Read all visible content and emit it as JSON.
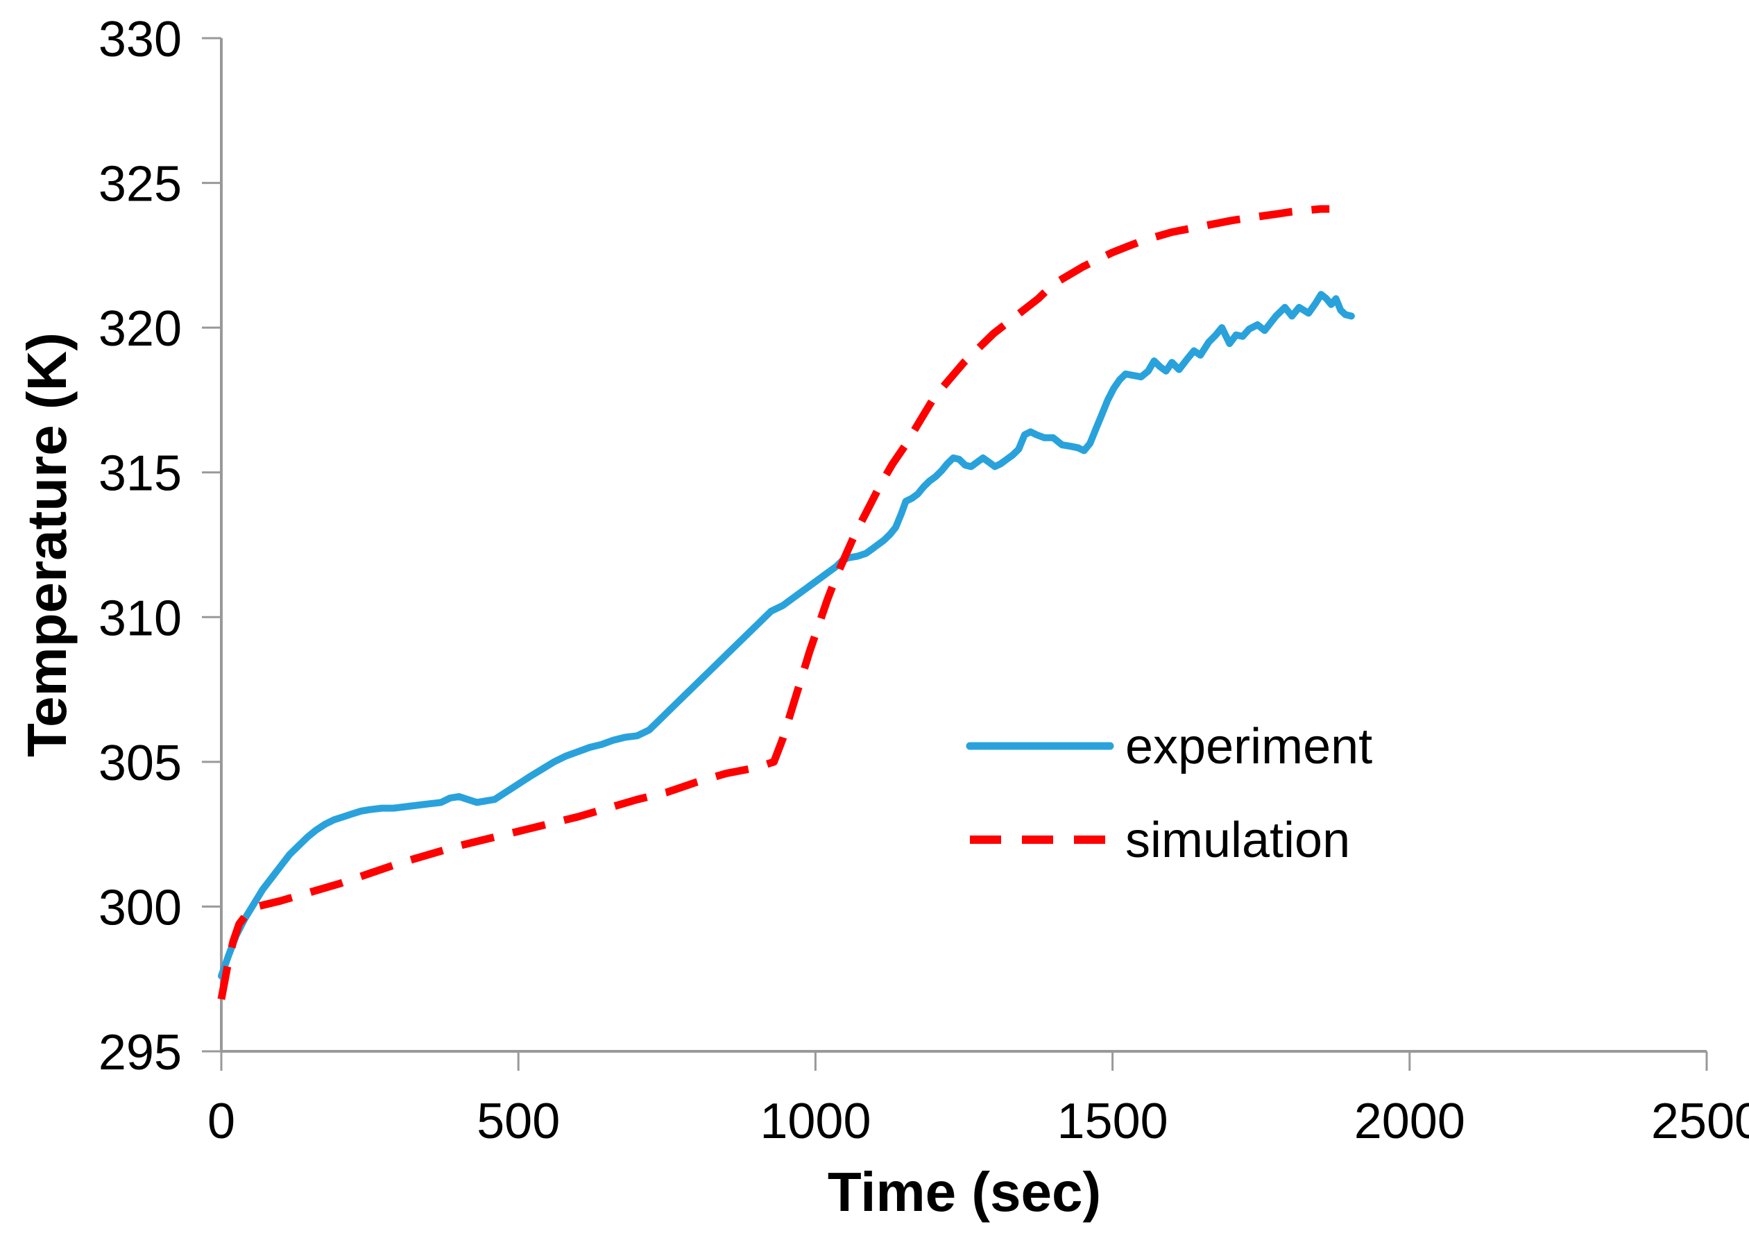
{
  "figure": {
    "background": "#ffffff",
    "axis_color": "#999999",
    "text_color": "#000000"
  },
  "chart_data": {
    "type": "line",
    "title": "",
    "xlabel": "Time (sec)",
    "ylabel": "Temperature (K)",
    "grid": false,
    "legend_position": "center-right",
    "legend": [
      "experiment",
      "simulation"
    ],
    "x_axis": {
      "min": 0,
      "max": 2500,
      "ticks": [
        0,
        500,
        1000,
        1500,
        2000,
        2500
      ]
    },
    "y_axis": {
      "min": 295,
      "max": 330,
      "ticks": [
        295,
        300,
        305,
        310,
        315,
        320,
        325,
        330
      ]
    },
    "series": [
      {
        "name": "experiment",
        "color": "#29A2DC",
        "style": "solid",
        "line_width": 10,
        "points": [
          [
            0,
            297.6
          ],
          [
            12,
            298.3
          ],
          [
            25,
            299.0
          ],
          [
            40,
            299.6
          ],
          [
            55,
            300.1
          ],
          [
            70,
            300.6
          ],
          [
            85,
            301.0
          ],
          [
            100,
            301.4
          ],
          [
            115,
            301.8
          ],
          [
            130,
            302.1
          ],
          [
            145,
            302.4
          ],
          [
            160,
            302.65
          ],
          [
            175,
            302.85
          ],
          [
            190,
            303.0
          ],
          [
            205,
            303.1
          ],
          [
            220,
            303.2
          ],
          [
            235,
            303.3
          ],
          [
            250,
            303.35
          ],
          [
            270,
            303.4
          ],
          [
            290,
            303.4
          ],
          [
            310,
            303.45
          ],
          [
            330,
            303.5
          ],
          [
            350,
            303.55
          ],
          [
            370,
            303.6
          ],
          [
            385,
            303.75
          ],
          [
            400,
            303.8
          ],
          [
            415,
            303.7
          ],
          [
            430,
            303.6
          ],
          [
            445,
            303.65
          ],
          [
            460,
            303.7
          ],
          [
            475,
            303.9
          ],
          [
            490,
            304.1
          ],
          [
            505,
            304.3
          ],
          [
            520,
            304.5
          ],
          [
            540,
            304.75
          ],
          [
            560,
            305.0
          ],
          [
            580,
            305.2
          ],
          [
            600,
            305.35
          ],
          [
            620,
            305.5
          ],
          [
            640,
            305.6
          ],
          [
            660,
            305.75
          ],
          [
            680,
            305.85
          ],
          [
            700,
            305.9
          ],
          [
            720,
            306.1
          ],
          [
            735,
            306.4
          ],
          [
            750,
            306.7
          ],
          [
            765,
            307.0
          ],
          [
            780,
            307.3
          ],
          [
            795,
            307.6
          ],
          [
            810,
            307.9
          ],
          [
            825,
            308.2
          ],
          [
            840,
            308.5
          ],
          [
            855,
            308.8
          ],
          [
            870,
            309.1
          ],
          [
            885,
            309.4
          ],
          [
            900,
            309.7
          ],
          [
            915,
            310.0
          ],
          [
            925,
            310.2
          ],
          [
            935,
            310.3
          ],
          [
            945,
            310.4
          ],
          [
            955,
            310.55
          ],
          [
            965,
            310.7
          ],
          [
            975,
            310.85
          ],
          [
            985,
            311.0
          ],
          [
            995,
            311.15
          ],
          [
            1005,
            311.3
          ],
          [
            1015,
            311.45
          ],
          [
            1025,
            311.6
          ],
          [
            1035,
            311.75
          ],
          [
            1045,
            311.95
          ],
          [
            1055,
            312.05
          ],
          [
            1070,
            312.1
          ],
          [
            1085,
            312.2
          ],
          [
            1095,
            312.35
          ],
          [
            1105,
            312.5
          ],
          [
            1115,
            312.65
          ],
          [
            1125,
            312.85
          ],
          [
            1135,
            313.1
          ],
          [
            1145,
            313.6
          ],
          [
            1152,
            314.0
          ],
          [
            1162,
            314.1
          ],
          [
            1172,
            314.25
          ],
          [
            1182,
            314.5
          ],
          [
            1192,
            314.7
          ],
          [
            1202,
            314.85
          ],
          [
            1212,
            315.05
          ],
          [
            1222,
            315.3
          ],
          [
            1232,
            315.5
          ],
          [
            1242,
            315.45
          ],
          [
            1252,
            315.25
          ],
          [
            1262,
            315.2
          ],
          [
            1272,
            315.35
          ],
          [
            1282,
            315.5
          ],
          [
            1292,
            315.35
          ],
          [
            1302,
            315.2
          ],
          [
            1312,
            315.3
          ],
          [
            1322,
            315.45
          ],
          [
            1332,
            315.6
          ],
          [
            1342,
            315.8
          ],
          [
            1352,
            316.3
          ],
          [
            1362,
            316.4
          ],
          [
            1372,
            316.3
          ],
          [
            1385,
            316.2
          ],
          [
            1400,
            316.2
          ],
          [
            1415,
            315.95
          ],
          [
            1430,
            315.9
          ],
          [
            1442,
            315.85
          ],
          [
            1452,
            315.75
          ],
          [
            1462,
            316.0
          ],
          [
            1472,
            316.5
          ],
          [
            1482,
            317.0
          ],
          [
            1492,
            317.5
          ],
          [
            1502,
            317.9
          ],
          [
            1512,
            318.2
          ],
          [
            1522,
            318.4
          ],
          [
            1535,
            318.35
          ],
          [
            1548,
            318.3
          ],
          [
            1560,
            318.5
          ],
          [
            1570,
            318.85
          ],
          [
            1580,
            318.65
          ],
          [
            1590,
            318.5
          ],
          [
            1600,
            318.8
          ],
          [
            1612,
            318.55
          ],
          [
            1625,
            318.9
          ],
          [
            1637,
            319.2
          ],
          [
            1648,
            319.05
          ],
          [
            1662,
            319.5
          ],
          [
            1674,
            319.75
          ],
          [
            1684,
            320.0
          ],
          [
            1697,
            319.45
          ],
          [
            1708,
            319.75
          ],
          [
            1719,
            319.7
          ],
          [
            1730,
            319.95
          ],
          [
            1744,
            320.1
          ],
          [
            1756,
            319.9
          ],
          [
            1775,
            320.4
          ],
          [
            1790,
            320.7
          ],
          [
            1802,
            320.4
          ],
          [
            1814,
            320.7
          ],
          [
            1830,
            320.5
          ],
          [
            1842,
            320.85
          ],
          [
            1851,
            321.15
          ],
          [
            1860,
            321.0
          ],
          [
            1868,
            320.8
          ],
          [
            1876,
            321.0
          ],
          [
            1884,
            320.6
          ],
          [
            1892,
            320.45
          ],
          [
            1902,
            320.4
          ]
        ]
      },
      {
        "name": "simulation",
        "color": "#FF0000",
        "style": "dashed",
        "line_width": 11,
        "dash": [
          48,
          28
        ],
        "points": [
          [
            0,
            296.8
          ],
          [
            10,
            297.9
          ],
          [
            20,
            298.8
          ],
          [
            30,
            299.4
          ],
          [
            45,
            299.8
          ],
          [
            60,
            300.0
          ],
          [
            100,
            300.2
          ],
          [
            150,
            300.5
          ],
          [
            200,
            300.8
          ],
          [
            250,
            301.15
          ],
          [
            300,
            301.5
          ],
          [
            350,
            301.8
          ],
          [
            400,
            302.1
          ],
          [
            450,
            302.35
          ],
          [
            500,
            302.6
          ],
          [
            550,
            302.85
          ],
          [
            600,
            303.1
          ],
          [
            650,
            303.4
          ],
          [
            700,
            303.7
          ],
          [
            750,
            303.95
          ],
          [
            800,
            304.3
          ],
          [
            850,
            304.6
          ],
          [
            900,
            304.8
          ],
          [
            930,
            305.0
          ],
          [
            945,
            305.8
          ],
          [
            960,
            306.8
          ],
          [
            975,
            307.8
          ],
          [
            990,
            308.8
          ],
          [
            1005,
            309.7
          ],
          [
            1020,
            310.6
          ],
          [
            1035,
            311.4
          ],
          [
            1050,
            312.1
          ],
          [
            1065,
            312.8
          ],
          [
            1080,
            313.4
          ],
          [
            1095,
            314.0
          ],
          [
            1110,
            314.6
          ],
          [
            1130,
            315.3
          ],
          [
            1150,
            315.9
          ],
          [
            1175,
            316.75
          ],
          [
            1200,
            317.6
          ],
          [
            1225,
            318.2
          ],
          [
            1250,
            318.8
          ],
          [
            1275,
            319.3
          ],
          [
            1300,
            319.8
          ],
          [
            1325,
            320.2
          ],
          [
            1350,
            320.6
          ],
          [
            1375,
            321.0
          ],
          [
            1400,
            321.5
          ],
          [
            1425,
            321.8
          ],
          [
            1450,
            322.1
          ],
          [
            1475,
            322.35
          ],
          [
            1500,
            322.6
          ],
          [
            1525,
            322.8
          ],
          [
            1550,
            323.0
          ],
          [
            1575,
            323.15
          ],
          [
            1600,
            323.3
          ],
          [
            1625,
            323.4
          ],
          [
            1650,
            323.5
          ],
          [
            1675,
            323.6
          ],
          [
            1700,
            323.7
          ],
          [
            1725,
            323.78
          ],
          [
            1750,
            323.85
          ],
          [
            1775,
            323.92
          ],
          [
            1800,
            324.0
          ],
          [
            1825,
            324.05
          ],
          [
            1850,
            324.1
          ],
          [
            1865,
            324.1
          ]
        ]
      }
    ]
  }
}
